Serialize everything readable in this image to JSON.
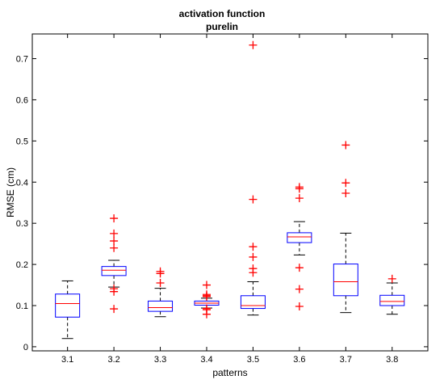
{
  "chart_data": {
    "type": "box",
    "title": [
      "activation function",
      "purelin"
    ],
    "xlabel": "patterns",
    "ylabel": "RMSE (cm)",
    "ylim": [
      -0.01,
      0.76
    ],
    "yticks": [
      0,
      0.1,
      0.2,
      0.3,
      0.4,
      0.5,
      0.6,
      0.7
    ],
    "grid": false,
    "colors": {
      "box": "#0000ff",
      "median": "#ff0000",
      "whisker": "#000000",
      "outlier": "#ff0000"
    },
    "categories": [
      "3.1",
      "3.2",
      "3.3",
      "3.4",
      "3.5",
      "3.6",
      "3.7",
      "3.8"
    ],
    "boxes": [
      {
        "min": 0.02,
        "q1": 0.072,
        "median": 0.105,
        "q3": 0.128,
        "max": 0.16,
        "outliers": []
      },
      {
        "min": 0.145,
        "q1": 0.173,
        "median": 0.186,
        "q3": 0.195,
        "max": 0.21,
        "outliers": [
          0.312,
          0.275,
          0.257,
          0.24,
          0.141,
          0.134,
          0.092
        ]
      },
      {
        "min": 0.073,
        "q1": 0.086,
        "median": 0.095,
        "q3": 0.111,
        "max": 0.142,
        "outliers": [
          0.183,
          0.178,
          0.155
        ]
      },
      {
        "min": 0.094,
        "q1": 0.101,
        "median": 0.106,
        "q3": 0.111,
        "max": 0.118,
        "outliers": [
          0.15,
          0.127,
          0.124,
          0.122,
          0.093,
          0.09,
          0.079
        ]
      },
      {
        "min": 0.077,
        "q1": 0.093,
        "median": 0.1,
        "q3": 0.124,
        "max": 0.158,
        "outliers": [
          0.733,
          0.358,
          0.243,
          0.218,
          0.19,
          0.18
        ]
      },
      {
        "min": 0.223,
        "q1": 0.253,
        "median": 0.267,
        "q3": 0.277,
        "max": 0.304,
        "outliers": [
          0.388,
          0.384,
          0.361,
          0.192,
          0.14,
          0.098
        ]
      },
      {
        "min": 0.083,
        "q1": 0.124,
        "median": 0.158,
        "q3": 0.201,
        "max": 0.276,
        "outliers": [
          0.49,
          0.398,
          0.373
        ]
      },
      {
        "min": 0.079,
        "q1": 0.1,
        "median": 0.11,
        "q3": 0.125,
        "max": 0.155,
        "outliers": [
          0.165
        ]
      }
    ]
  }
}
